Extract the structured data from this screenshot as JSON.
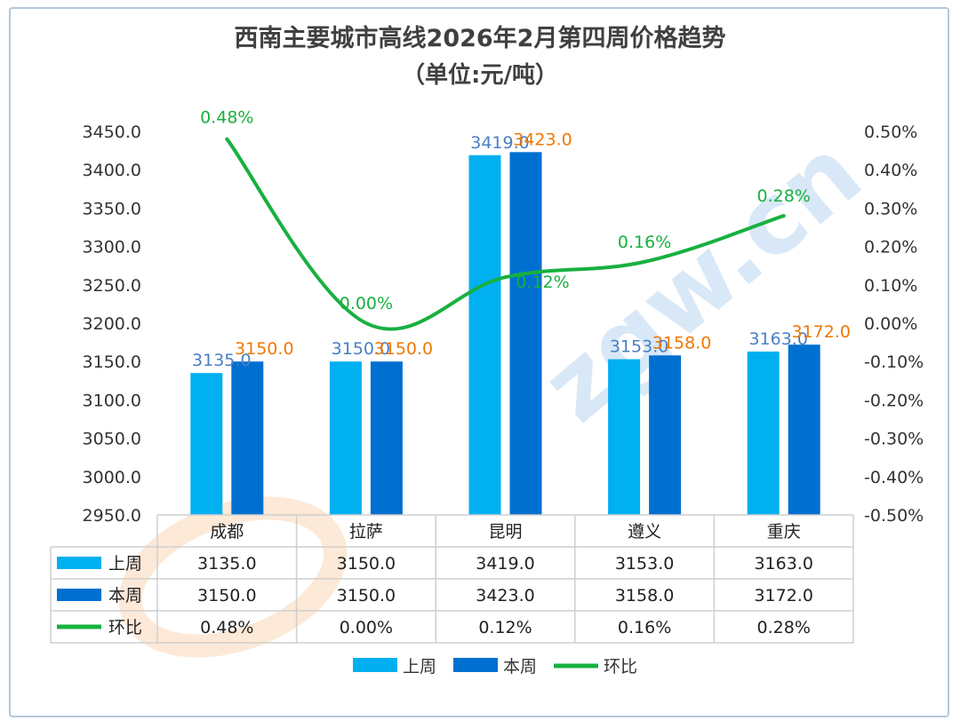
{
  "chart_data": {
    "type": "bar",
    "title": "西南主要城市高线2026年2月第四周价格趋势",
    "subtitle": "（单位:元/吨）",
    "categories": [
      "成都",
      "拉萨",
      "昆明",
      "遵义",
      "重庆"
    ],
    "series": [
      {
        "name": "上周",
        "type": "bar",
        "axis": "left",
        "color": "#00b0f0",
        "label_color": "#4a7fc4",
        "values": [
          3135.0,
          3150.0,
          3419.0,
          3153.0,
          3163.0
        ]
      },
      {
        "name": "本周",
        "type": "bar",
        "axis": "left",
        "color": "#0070d0",
        "label_color": "#f07800",
        "values": [
          3150.0,
          3150.0,
          3423.0,
          3158.0,
          3172.0
        ]
      },
      {
        "name": "环比",
        "type": "line",
        "axis": "right",
        "color": "#18b040",
        "label_color": "#18b040",
        "values": [
          0.48,
          0.0,
          0.12,
          0.16,
          0.28
        ]
      }
    ],
    "y_left": {
      "min": 2950,
      "max": 3450,
      "step": 50,
      "decimals": 1
    },
    "y_right": {
      "min": -0.5,
      "max": 0.5,
      "step": 0.1,
      "unit": "%",
      "decimals": 2
    },
    "data_table": true,
    "legend_position": "bottom",
    "grid": false
  },
  "watermark": "zgw.cn"
}
